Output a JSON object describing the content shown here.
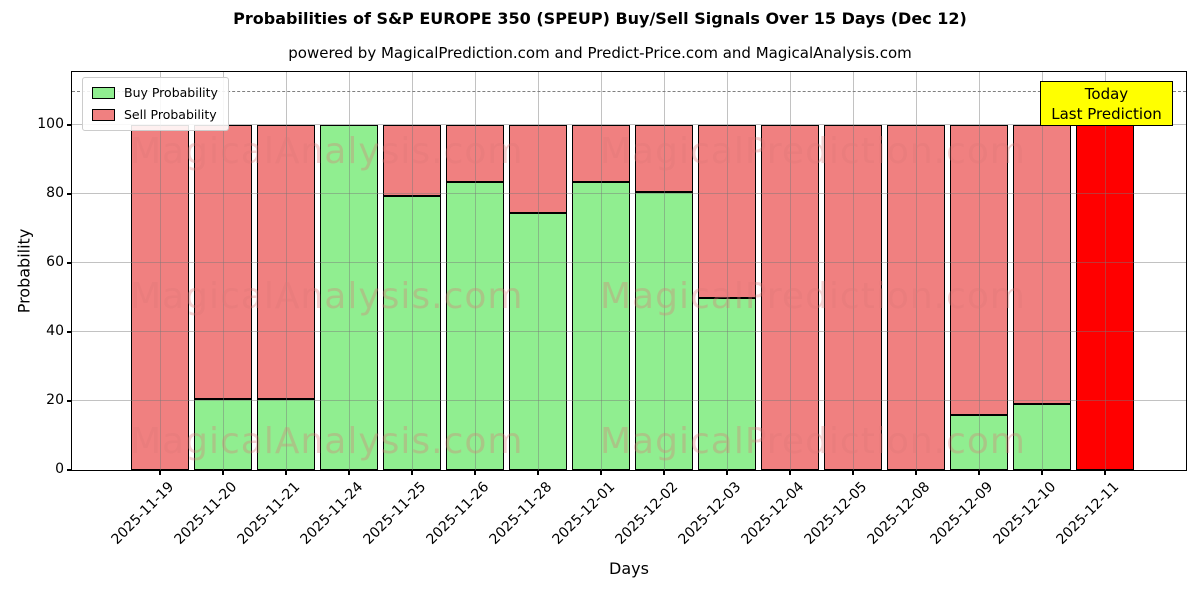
{
  "figure": {
    "title": "Probabilities of S&P EUROPE 350 (SPEUP) Buy/Sell Signals Over 15 Days (Dec 12)",
    "subtitle": "powered by MagicalPrediction.com and Predict-Price.com and MagicalAnalysis.com"
  },
  "chart_data": {
    "type": "bar",
    "stacked": true,
    "title": "Probabilities of S&P EUROPE 350 (SPEUP) Buy/Sell Signals Over 15 Days (Dec 12)",
    "subtitle": "powered by MagicalPrediction.com and Predict-Price.com and MagicalAnalysis.com",
    "xlabel": "Days",
    "ylabel": "Probability",
    "ylim": [
      0,
      115
    ],
    "yticks": [
      0,
      20,
      40,
      60,
      80,
      100
    ],
    "grid": true,
    "dashed_threshold_y": 110,
    "legend_position": "upper left",
    "categories": [
      "2025-11-19",
      "2025-11-20",
      "2025-11-21",
      "2025-11-24",
      "2025-11-25",
      "2025-11-26",
      "2025-11-28",
      "2025-12-01",
      "2025-12-02",
      "2025-12-03",
      "2025-12-04",
      "2025-12-05",
      "2025-12-08",
      "2025-12-09",
      "2025-12-10",
      "2025-12-11"
    ],
    "series": [
      {
        "name": "Buy Probability",
        "color": "#90EE90",
        "values": [
          0,
          20.5,
          20.5,
          100,
          79.5,
          83.5,
          74.5,
          83.5,
          80.5,
          50,
          0,
          0,
          0,
          16,
          19,
          0
        ]
      },
      {
        "name": "Sell Probability",
        "color": "#F08080",
        "values": [
          100,
          79.5,
          79.5,
          0,
          20.5,
          16.5,
          25.5,
          16.5,
          19.5,
          50,
          100,
          100,
          100,
          84,
          81,
          100
        ]
      }
    ],
    "highlight_bar": {
      "category": "2025-12-11",
      "color": "#FF0000"
    }
  },
  "legend": {
    "buy_label": "Buy Probability",
    "sell_label": "Sell Probability"
  },
  "annotation_box": {
    "line1": "Today",
    "line2": "Last Prediction",
    "bg_color": "#FFFF00"
  },
  "watermarks": {
    "left_text": "MagicalAnalysis.com",
    "right_text": "MagicalPrediction.com"
  },
  "colors": {
    "buy": "#90EE90",
    "sell": "#F08080",
    "today_bar": "#FF0000",
    "grid": "#B9B9B9",
    "dashed_line": "#7F7F7F",
    "annotation_bg": "#FFFF00"
  }
}
